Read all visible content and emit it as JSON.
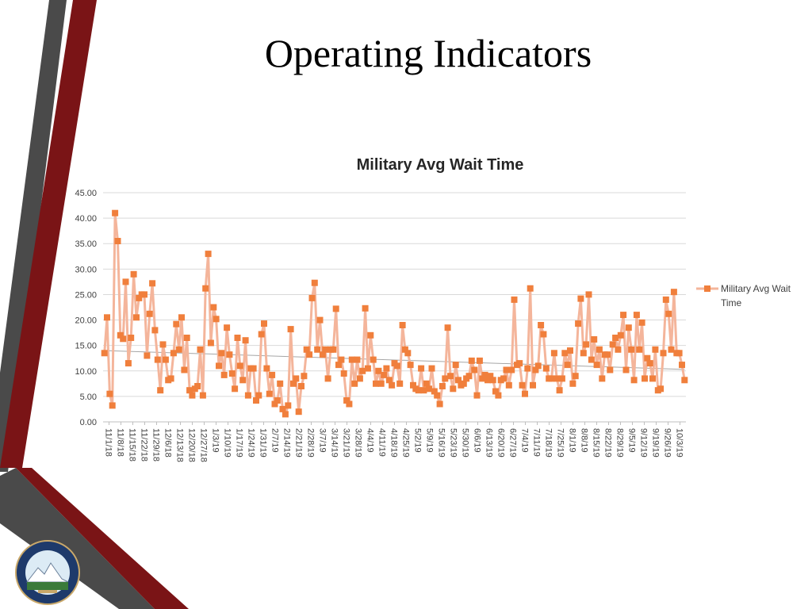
{
  "slide": {
    "title": "Operating Indicators"
  },
  "colors": {
    "maroon": "#7a1416",
    "dark_gray": "#4a4a4a",
    "series_line": "#f4b59b",
    "marker": "#f07f3c",
    "trendline": "#a6a6a6"
  },
  "seal": {
    "text": "EL PASO COUNTY COLORADO EST. 1861"
  },
  "chart_data": {
    "type": "line",
    "title": "Military Avg Wait Time",
    "xlabel": "",
    "ylabel": "",
    "ylim": [
      0,
      45
    ],
    "yticks": [
      "0.00",
      "5.00",
      "10.00",
      "15.00",
      "20.00",
      "25.00",
      "30.00",
      "35.00",
      "40.00",
      "45.00"
    ],
    "x_tick_labels": [
      "11/1/18",
      "11/8/18",
      "11/15/18",
      "11/22/18",
      "11/29/18",
      "12/6/18",
      "12/13/18",
      "12/20/18",
      "12/27/18",
      "1/3/19",
      "1/10/19",
      "1/17/19",
      "1/24/19",
      "1/31/19",
      "2/7/19",
      "2/14/19",
      "2/21/19",
      "2/28/19",
      "3/7/19",
      "3/14/19",
      "3/21/19",
      "3/28/19",
      "4/4/19",
      "4/11/19",
      "4/18/19",
      "4/25/19",
      "5/2/19",
      "5/9/19",
      "5/16/19",
      "5/23/19",
      "5/30/19",
      "6/6/19",
      "6/13/19",
      "6/20/19",
      "6/27/19",
      "7/4/19",
      "7/11/19",
      "7/18/19",
      "7/25/19",
      "8/1/19",
      "8/8/19",
      "8/15/19",
      "8/22/19",
      "8/29/19",
      "9/5/19",
      "9/12/19",
      "9/19/19",
      "9/26/19",
      "10/3/19"
    ],
    "grid": true,
    "legend_position": "right",
    "trendline": {
      "type": "linear",
      "start": 14.0,
      "end": 10.3
    },
    "series": [
      {
        "name": "Military Avg Wait Time",
        "values": [
          13.5,
          20.5,
          5.5,
          3.2,
          41.0,
          35.5,
          17.0,
          16.3,
          27.5,
          11.5,
          16.5,
          29.0,
          20.5,
          24.3,
          25.0,
          25.0,
          13.0,
          21.2,
          27.2,
          18.0,
          12.2,
          6.2,
          15.2,
          12.2,
          8.2,
          8.5,
          13.5,
          19.2,
          14.2,
          20.5,
          10.2,
          16.5,
          6.2,
          5.2,
          6.5,
          7.0,
          14.2,
          5.2,
          26.2,
          33.0,
          15.5,
          22.5,
          20.2,
          11.0,
          13.5,
          9.2,
          18.5,
          13.2,
          9.5,
          6.5,
          16.5,
          11.0,
          8.2,
          16.0,
          5.2,
          10.5,
          10.5,
          4.2,
          5.2,
          17.2,
          19.3,
          10.5,
          5.5,
          9.2,
          3.5,
          4.2,
          7.5,
          2.5,
          1.5,
          3.2,
          18.2,
          7.5,
          8.5,
          2.0,
          7.0,
          9.0,
          14.2,
          13.2,
          24.3,
          27.3,
          14.2,
          20.0,
          13.2,
          14.2,
          8.5,
          14.2,
          14.2,
          22.2,
          11.2,
          12.2,
          9.5,
          4.2,
          3.5,
          12.2,
          7.5,
          12.2,
          8.5,
          10.0,
          22.3,
          10.5,
          17.0,
          12.2,
          7.5,
          10.0,
          7.5,
          9.2,
          10.5,
          8.2,
          7.2,
          11.5,
          11.0,
          7.5,
          19.0,
          14.2,
          13.5,
          11.2,
          7.2,
          6.5,
          6.2,
          10.5,
          6.2,
          7.5,
          6.5,
          10.5,
          6.0,
          5.2,
          3.5,
          7.0,
          8.5,
          18.5,
          9.0,
          6.5,
          11.2,
          8.2,
          7.2,
          7.5,
          8.5,
          9.0,
          12.0,
          10.2,
          5.2,
          12.0,
          8.5,
          9.2,
          8.2,
          9.0,
          8.2,
          6.0,
          5.2,
          8.2,
          8.5,
          10.2,
          7.2,
          10.2,
          24.0,
          11.2,
          11.5,
          7.2,
          5.5,
          10.5,
          26.2,
          7.2,
          10.2,
          11.0,
          19.0,
          17.2,
          10.5,
          8.5,
          8.5,
          13.5,
          8.5,
          6.2,
          8.5,
          13.5,
          11.2,
          14.0,
          7.5,
          9.0,
          19.3,
          24.2,
          13.5,
          15.2,
          25.0,
          12.2,
          16.2,
          11.2,
          14.2,
          8.5,
          13.2,
          13.2,
          10.2,
          15.2,
          16.5,
          14.2,
          17.0,
          21.0,
          10.2,
          18.5,
          14.2,
          8.2,
          21.0,
          14.2,
          19.5,
          8.5,
          12.5,
          11.5,
          8.5,
          14.2,
          6.2,
          6.5,
          13.5,
          24.0,
          21.2,
          14.2,
          25.5,
          13.5,
          13.5,
          11.2,
          8.2
        ]
      }
    ]
  }
}
